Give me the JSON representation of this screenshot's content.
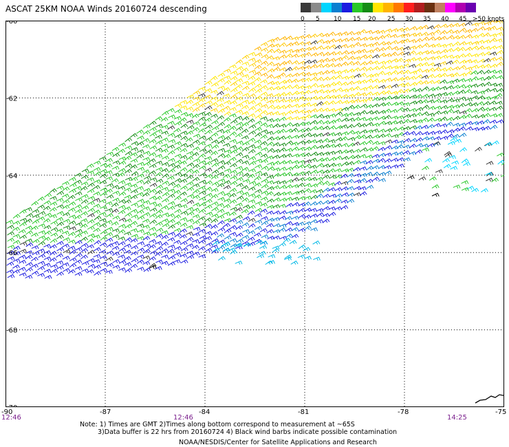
{
  "title": "ASCAT 25KM NOAA Winds 20160724 descending",
  "legend": {
    "ticks": [
      "0",
      "5",
      "10",
      "15",
      "20",
      "25",
      "30",
      "35",
      "40",
      "45",
      ">50 knots"
    ],
    "colors": [
      "#3a3a3a",
      "#8a8a8a",
      "#00d5ff",
      "#0a7fd0",
      "#1b1be0",
      "#28c828",
      "#148c14",
      "#ffe600",
      "#ffb400",
      "#ff7800",
      "#ff1e1e",
      "#b01e1e",
      "#6a3010",
      "#c08060",
      "#ff00ff",
      "#b000b0",
      "#6a00b0"
    ]
  },
  "map": {
    "lon_labels": [
      "-90",
      "-87",
      "-84",
      "-81",
      "-78",
      "-75"
    ],
    "lat_labels": [
      "-60",
      "-62",
      "-64",
      "-66",
      "-68",
      "-70"
    ],
    "time_labels": [
      "12:46",
      "12:46",
      "14:25"
    ]
  },
  "notes": {
    "line1": "Note: 1) Times are GMT 2)Times along bottom correspond to measurement at ~65S",
    "line2": "3)Data buffer is 22 hrs from 20160724 4) Black wind barbs indicate possible contamination",
    "credit": "NOAA/NESDIS/Center for Satellite Applications and Research"
  }
}
